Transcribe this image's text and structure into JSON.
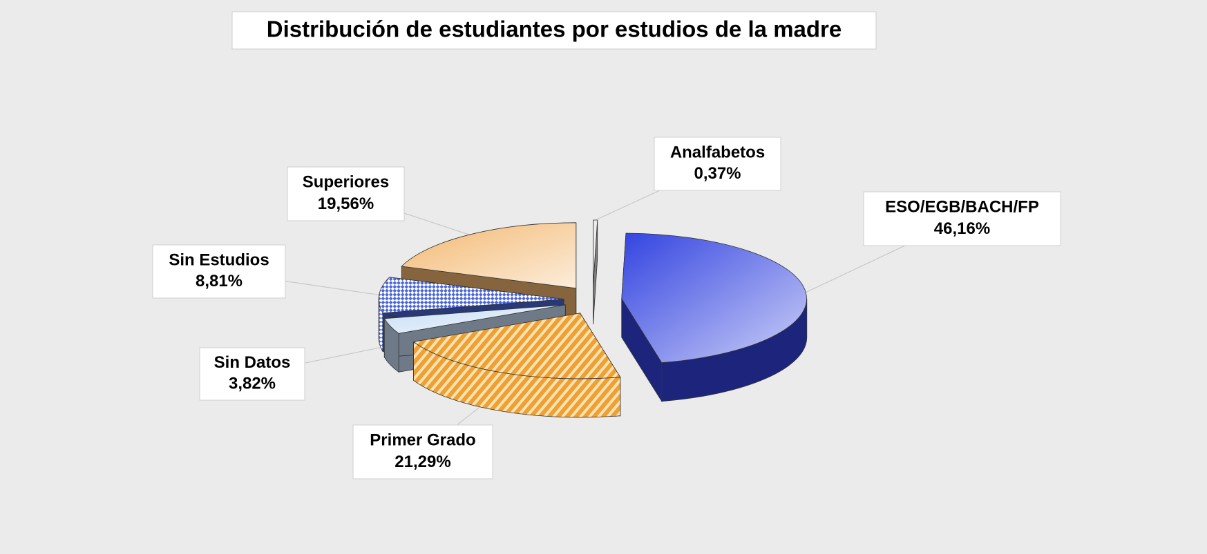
{
  "chart_data": {
    "type": "pie3d",
    "title": "Distribución de estudiantes por estudios de la madre",
    "categories": [
      "Analfabetos",
      "ESO/EGB/BACH/FP",
      "Primer Grado",
      "Sin Datos",
      "Sin Estudios",
      "Superiores"
    ],
    "values": [
      0.37,
      46.16,
      21.29,
      3.82,
      8.81,
      19.56
    ],
    "value_labels": [
      "0,37%",
      "46,16%",
      "21,29%",
      "3,82%",
      "8,81%",
      "19,56%"
    ],
    "colors": [
      "#e8e8e8",
      "#3344e0",
      "#f0a030",
      "#c8def5",
      "#4a66d8",
      "#f3b870"
    ],
    "hatch": [
      null,
      null,
      "diagonal",
      null,
      "checker",
      null
    ]
  }
}
